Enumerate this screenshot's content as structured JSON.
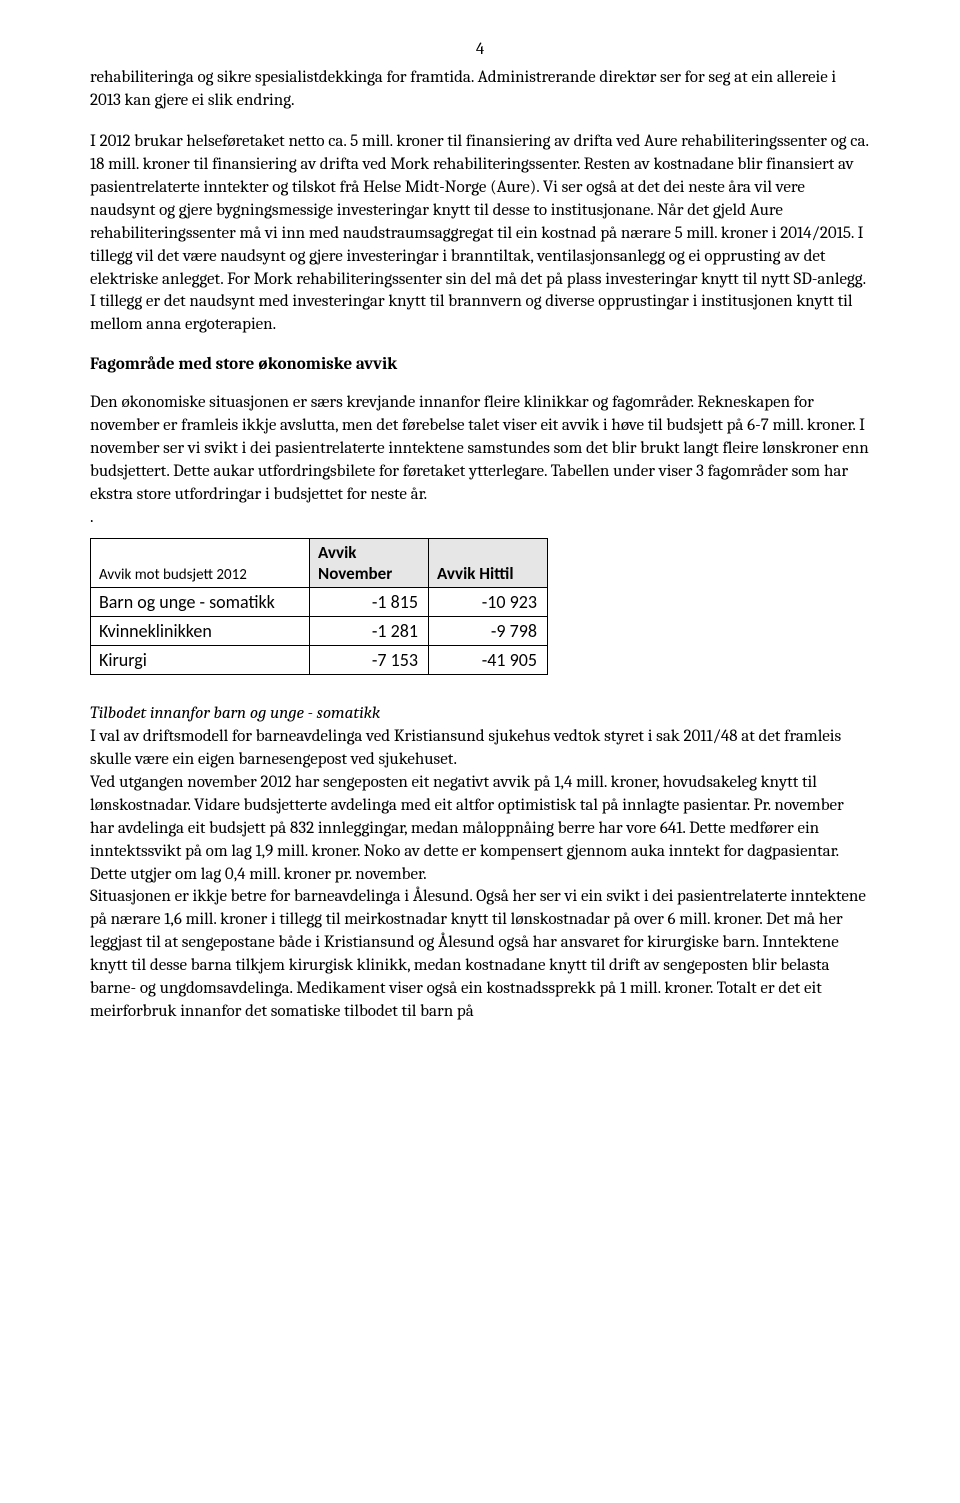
{
  "page_number": "4",
  "paragraph1": "rehabiliteringa og sikre spesialistdekkinga for framtida. Administrerande direktør ser for seg at ein allereie i 2013 kan gjere ei slik endring.",
  "paragraph2": "I 2012 brukar helseføretaket netto ca. 5 mill. kroner til finansiering av drifta ved Aure rehabiliteringssenter og ca. 18 mill. kroner til finansiering av drifta ved Mork rehabiliteringssenter. Resten av kostnadane blir finansiert av pasientrelaterte inntekter og tilskot frå Helse Midt-Norge (Aure). Vi ser også at det dei neste åra vil vere naudsynt og gjere bygningsmessige investeringar knytt til desse to institusjonane. Når det gjeld Aure rehabiliteringssenter må vi inn med naudstraumsaggregat til ein kostnad på nærare 5 mill. kroner i 2014/2015. I tillegg vil det være naudsynt og gjere investeringar i branntiltak, ventilasjonsanlegg og ei opprusting av det elektriske anlegget. For Mork rehabiliteringssenter sin del må det på plass investeringar knytt til nytt SD-anlegg. I tillegg er det naudsynt med investeringar knytt til brannvern og diverse opprustingar i institusjonen knytt til mellom anna ergoterapien.",
  "heading1": "Fagområde med store økonomiske avvik",
  "paragraph3": "Den økonomiske situasjonen er særs krevjande innanfor fleire klinikkar og fagområder. Rekneskapen for november er framleis ikkje avslutta, men det førebelse talet viser eit avvik i høve til budsjett på 6-7 mill. kroner. I november ser vi svikt i dei pasientrelaterte inntektene samstundes som det blir brukt langt fleire lønskroner enn budsjettert. Dette aukar utfordringsbilete for føretaket ytterlegare. Tabellen under viser 3 fagområder som har ekstra store utfordringar i budsjettet for neste år.",
  "dot_line": ".",
  "table": {
    "type": "table",
    "header_row_label": "Avvik mot budsjett 2012",
    "columns": [
      "Avvik November",
      "Avvik Hittil"
    ],
    "header_bg": "#e6e6e6",
    "border_color": "#000000",
    "rows": [
      {
        "label": "Barn og unge - somatikk",
        "values": [
          "-1 815",
          "-10 923"
        ]
      },
      {
        "label": "Kvinneklinikken",
        "values": [
          "-1 281",
          "-9 798"
        ]
      },
      {
        "label": "Kirurgi",
        "values": [
          "-7 153",
          "-41 905"
        ]
      }
    ]
  },
  "subheading_italic": "Tilbodet innanfor barn og unge - somatikk",
  "paragraph4": "I val av driftsmodell for barneavdelinga ved Kristiansund sjukehus vedtok styret i sak 2011/48 at det framleis skulle være ein eigen barnesengepost ved sjukehuset.",
  "paragraph5": "Ved utgangen november 2012 har sengeposten eit negativt avvik på 1,4 mill. kroner, hovudsakeleg knytt til lønskostnadar. Vidare budsjetterte avdelinga med eit altfor optimistisk tal på innlagte pasientar. Pr. november har avdelinga eit budsjett på 832 innleggingar, medan måloppnåing berre har vore 641. Dette medfører ein inntektssvikt på om lag 1,9 mill. kroner. Noko av dette er kompensert gjennom auka inntekt for dagpasientar. Dette utgjer om lag 0,4 mill. kroner pr. november.",
  "paragraph6": "Situasjonen er ikkje betre for barneavdelinga i Ålesund. Også her ser vi ein svikt i dei pasientrelaterte inntektene på nærare 1,6 mill. kroner i tillegg til meirkostnadar knytt til lønskostnadar på over 6 mill. kroner. Det må her leggjast til at sengepostane både i Kristiansund og Ålesund også har ansvaret for kirurgiske barn. Inntektene knytt til desse barna tilkjem kirurgisk klinikk, medan kostnadane knytt til drift av sengeposten blir belasta barne- og ungdomsavdelinga. Medikament viser også ein kostnadssprekk på 1 mill. kroner. Totalt er det eit meirforbruk innanfor det somatiske tilbodet til barn på"
}
